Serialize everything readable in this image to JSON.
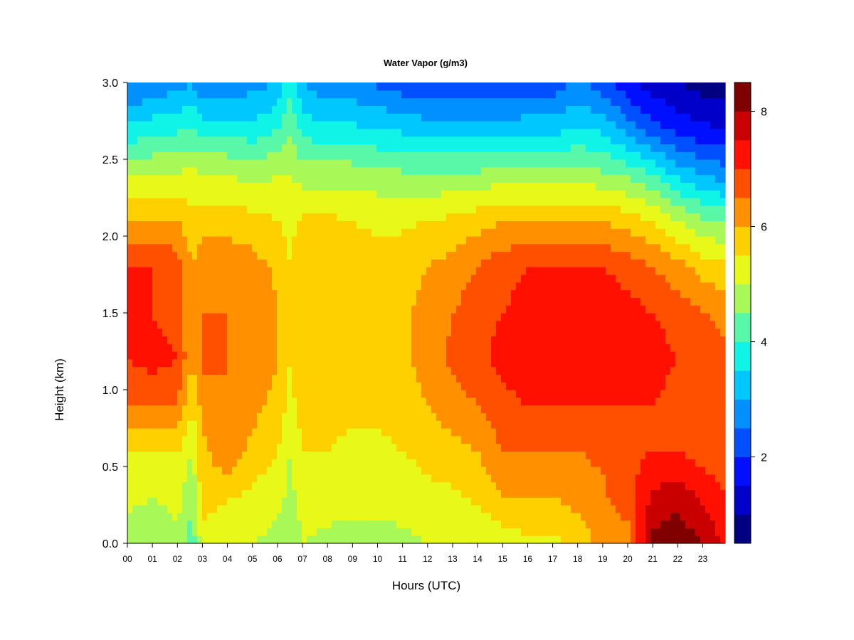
{
  "chart_data": {
    "type": "heatmap",
    "title": "Water Vapor (g/m3)",
    "xlabel": "Hours (UTC)",
    "ylabel": "Height (km)",
    "x_ticks": [
      "00",
      "01",
      "02",
      "03",
      "04",
      "05",
      "06",
      "07",
      "08",
      "09",
      "10",
      "11",
      "12",
      "13",
      "14",
      "15",
      "16",
      "17",
      "18",
      "19",
      "20",
      "21",
      "22",
      "23"
    ],
    "y_ticks": [
      "0.0",
      "0.5",
      "1.0",
      "1.5",
      "2.0",
      "2.5",
      "3.0"
    ],
    "xlim": [
      0,
      23.9
    ],
    "ylim": [
      0,
      3.0
    ],
    "colorbar": {
      "min": 0.5,
      "max": 8.5,
      "step": 0.5,
      "tick_values": [
        2,
        4,
        6,
        8
      ],
      "tick_labels": [
        "2",
        "4",
        "6",
        "8"
      ],
      "colors": [
        "#000080",
        "#0000C8",
        "#0010FF",
        "#0050FF",
        "#0090FF",
        "#00C8FF",
        "#10F4E8",
        "#58F8A8",
        "#A8F858",
        "#E8F818",
        "#FFD000",
        "#FF9000",
        "#FF5000",
        "#FF1000",
        "#C80000",
        "#800000"
      ]
    },
    "profiles": [
      {
        "hour": 0.0,
        "values": [
          4.5,
          5.2,
          5.5,
          6.5,
          7.0,
          7.0,
          7.0,
          6.0,
          5.0,
          3.6,
          2.4
        ]
      },
      {
        "hour": 1.0,
        "values": [
          4.5,
          5.0,
          5.5,
          6.5,
          7.2,
          7.0,
          7.0,
          6.0,
          5.0,
          3.8,
          2.6
        ]
      },
      {
        "hour": 2.0,
        "values": [
          4.8,
          5.2,
          5.5,
          6.5,
          7.0,
          6.8,
          6.8,
          6.0,
          5.0,
          3.9,
          2.8
        ]
      },
      {
        "hour": 2.6,
        "values": [
          4.2,
          4.6,
          5.0,
          5.5,
          6.0,
          6.0,
          6.0,
          5.6,
          5.2,
          4.0,
          3.0
        ]
      },
      {
        "hour": 3.0,
        "values": [
          5.2,
          5.8,
          5.8,
          6.2,
          6.6,
          6.5,
          6.3,
          5.8,
          5.0,
          3.8,
          2.6
        ]
      },
      {
        "hour": 4.0,
        "values": [
          5.2,
          5.5,
          6.5,
          6.5,
          6.5,
          6.5,
          6.3,
          5.8,
          5.0,
          3.8,
          2.6
        ]
      },
      {
        "hour": 5.0,
        "values": [
          5.0,
          5.4,
          5.8,
          6.2,
          6.5,
          6.4,
          6.2,
          5.7,
          4.8,
          3.7,
          2.8
        ]
      },
      {
        "hour": 6.0,
        "values": [
          4.8,
          5.2,
          5.5,
          5.8,
          6.0,
          6.0,
          5.9,
          5.5,
          5.0,
          4.0,
          3.0
        ]
      },
      {
        "hour": 6.5,
        "values": [
          4.5,
          4.8,
          5.0,
          5.3,
          5.5,
          5.5,
          5.5,
          5.3,
          5.0,
          4.4,
          3.8
        ]
      },
      {
        "hour": 7.0,
        "values": [
          5.0,
          5.3,
          5.5,
          5.8,
          6.0,
          6.0,
          6.0,
          5.6,
          4.8,
          3.8,
          3.0
        ]
      },
      {
        "hour": 8.0,
        "values": [
          4.8,
          5.3,
          5.5,
          5.6,
          5.8,
          5.8,
          5.8,
          5.6,
          4.8,
          3.6,
          2.6
        ]
      },
      {
        "hour": 9.0,
        "values": [
          4.8,
          5.2,
          5.4,
          5.6,
          5.8,
          5.8,
          5.8,
          5.5,
          4.8,
          3.6,
          2.6
        ]
      },
      {
        "hour": 10.0,
        "values": [
          4.8,
          5.2,
          5.4,
          5.6,
          5.8,
          5.8,
          5.7,
          5.4,
          4.7,
          3.5,
          2.4
        ]
      },
      {
        "hour": 11.0,
        "values": [
          4.8,
          5.3,
          5.5,
          5.7,
          5.9,
          5.9,
          5.8,
          5.4,
          4.6,
          3.4,
          2.2
        ]
      },
      {
        "hour": 12.0,
        "values": [
          5.0,
          5.4,
          5.6,
          6.0,
          6.2,
          6.2,
          6.0,
          5.5,
          4.6,
          3.3,
          2.0
        ]
      },
      {
        "hour": 13.0,
        "values": [
          5.0,
          5.4,
          5.8,
          6.3,
          6.6,
          6.5,
          6.2,
          5.6,
          4.6,
          3.2,
          2.0
        ]
      },
      {
        "hour": 14.0,
        "values": [
          5.0,
          5.6,
          6.0,
          6.5,
          6.8,
          6.8,
          6.5,
          5.8,
          4.6,
          3.2,
          2.0
        ]
      },
      {
        "hour": 15.0,
        "values": [
          5.2,
          6.0,
          6.5,
          6.8,
          7.2,
          7.0,
          6.8,
          6.0,
          4.8,
          3.2,
          2.0
        ]
      },
      {
        "hour": 16.0,
        "values": [
          5.4,
          6.0,
          6.5,
          7.0,
          7.4,
          7.2,
          7.0,
          6.0,
          4.8,
          3.3,
          2.2
        ]
      },
      {
        "hour": 17.0,
        "values": [
          5.4,
          6.0,
          6.5,
          7.0,
          7.4,
          7.2,
          7.0,
          6.0,
          4.8,
          3.3,
          2.2
        ]
      },
      {
        "hour": 18.0,
        "values": [
          5.6,
          6.2,
          6.5,
          7.0,
          7.4,
          7.2,
          7.0,
          6.0,
          4.8,
          3.5,
          2.6
        ]
      },
      {
        "hour": 19.0,
        "values": [
          6.2,
          6.4,
          6.6,
          7.0,
          7.4,
          7.3,
          7.0,
          6.0,
          4.6,
          3.4,
          2.2
        ]
      },
      {
        "hour": 20.0,
        "values": [
          6.2,
          6.8,
          6.8,
          7.0,
          7.4,
          7.2,
          6.8,
          5.8,
          4.4,
          2.8,
          1.6
        ]
      },
      {
        "hour": 21.0,
        "values": [
          8.2,
          7.6,
          7.0,
          7.0,
          7.2,
          7.0,
          6.5,
          5.5,
          4.0,
          2.2,
          1.2
        ]
      },
      {
        "hour": 22.0,
        "values": [
          8.4,
          7.8,
          7.0,
          6.8,
          7.0,
          6.8,
          6.2,
          5.0,
          3.4,
          1.8,
          1.0
        ]
      },
      {
        "hour": 23.0,
        "values": [
          8.0,
          7.4,
          6.8,
          6.6,
          6.8,
          6.5,
          5.8,
          4.6,
          3.0,
          1.6,
          0.8
        ]
      },
      {
        "hour": 23.9,
        "values": [
          7.4,
          7.0,
          6.6,
          6.5,
          6.6,
          6.4,
          5.6,
          4.4,
          2.8,
          1.5,
          0.7
        ]
      }
    ],
    "profile_heights": [
      0.0,
      0.3,
      0.6,
      0.9,
      1.2,
      1.5,
      1.8,
      2.1,
      2.4,
      2.7,
      3.0
    ],
    "grid": false,
    "legend": "colorbar-right"
  }
}
